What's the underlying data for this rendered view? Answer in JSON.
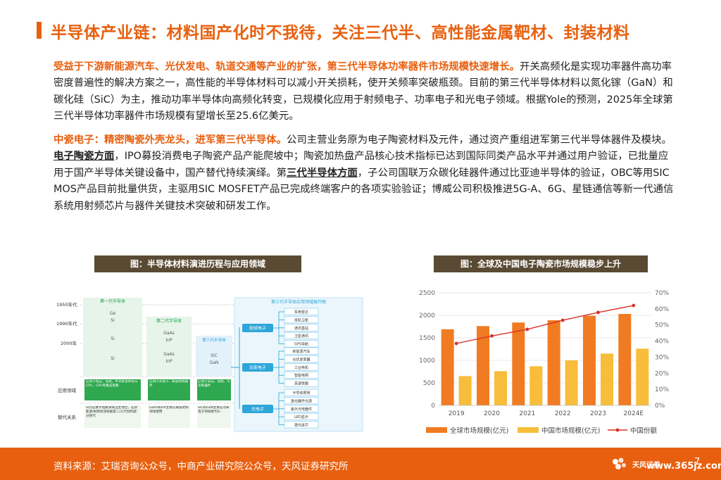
{
  "header": {
    "title": "半导体产业链：材料国产化时不我待，关注三代半、高性能金属靶材、封装材料"
  },
  "paragraph1": {
    "lead": "受益于下游新能源汽车、光伏发电、轨道交通等产业的扩张，第三代半导体功率器件市场规模快速增长。",
    "body": "开关高频化是实现功率器件高功率密度普遍性的解决方案之一，高性能的半导体材料可以减小开关损耗，使开关频率突破瓶颈。目前的第三代半导体材料以氮化镓（GaN）和碳化硅（SiC）为主，推动功率半导体向高频化转变，已规模化应用于射频电子、功率电子和光电子领域。根据Yole的预测，2025年全球第三代半导体功率器件市场规模有望增长至25.6亿美元。"
  },
  "paragraph2": {
    "lead": "中瓷电子：精密陶瓷外壳龙头，进军第三代半导体。",
    "body1": "公司主营业务原为电子陶瓷材料及元件，通过资产重组进军第三代半导体器件及模块。",
    "u1": "电子陶瓷方面",
    "body2": "，IPO募投消费电子陶瓷产品产能爬坡中；陶瓷加热盘产品核心技术指标已达到国际同类产品水平并通过用户验证，已批量应用于国产半导体关键设备中，国产替代持续演绎。第",
    "u2": "三代半导体方面",
    "body3": "，子公司国联万众碳化硅器件通过比亚迪半导体的验证，OBC等用SIC MOS产品目前批量供货，主驱用SIC MOSFET产品已完成终端客户的各项实验验证；博威公司积极推进5G-A、6G、星链通信等新一代通信系统用射频芯片与器件关键技术突破和研发工作。"
  },
  "figure_left": {
    "title": "图：半导体材料演进历程与应用领域",
    "eras": [
      "1950年代",
      "1990年代",
      "2000年"
    ],
    "row_labels": [
      "应用领域",
      "替代关系"
    ],
    "gen1": {
      "title": "第一代半导体",
      "materials": [
        "Ge",
        "Si",
        "Si",
        "Si"
      ],
      "app": "应用于电压、低频、中功率晶体管与CPU、GPU等集成电路",
      "rel": "Si仍在数字电路领域占主地位，在新能源/射频等领域被第二/三代材料部分替代"
    },
    "gen2": {
      "title": "第二代半导体",
      "materials": [
        "GaAs",
        "InP",
        "GaAs",
        "InP"
      ],
      "app": "应用于光电子、微波射频器件",
      "rel": "GaAs和InP主要在微波射频领域使用"
    },
    "gen3": {
      "title": "第三代半导体",
      "materials": [
        "SiC",
        "GaN"
      ],
      "app": "应用于高压、高频、大功率器件",
      "rel": "SiC和GaN主要在功率电子领域替代Si"
    },
    "apps_title": "第三代半导体应用领域展开图",
    "categories": [
      "射频电子",
      "功率电子",
      "光电子"
    ],
    "rf_items": [
      "军用雷达",
      "低轨卫星",
      "通讯基站",
      "卫星通讯",
      "GPS导航"
    ],
    "power_items": [
      "新能源汽车",
      "光伏逆变器",
      "工业电机",
      "智能电网",
      "高速铁路"
    ],
    "opto_items": [
      "半导体照明",
      "激光器件光源",
      "紫外光电器件",
      "LED显示",
      "激光显示"
    ]
  },
  "figure_right": {
    "title": "图：全球及中国电子陶瓷市场规模稳步上升"
  },
  "chart_data": {
    "type": "bar",
    "title": "",
    "categories": [
      "2019",
      "2020",
      "2021",
      "2022",
      "2023",
      "2024E"
    ],
    "series": [
      {
        "name": "全球市场规模(亿元)",
        "type": "bar",
        "axis": "left",
        "values": [
          1690,
          1760,
          1840,
          1890,
          1990,
          2030
        ]
      },
      {
        "name": "中国市场规模(亿元)",
        "type": "bar",
        "axis": "left",
        "values": [
          650,
          760,
          870,
          1000,
          1150,
          1260
        ]
      },
      {
        "name": "中国份额",
        "type": "line",
        "axis": "right",
        "values": [
          38.5,
          43.2,
          47.3,
          52.9,
          57.8,
          62.1
        ]
      }
    ],
    "ylim_left": [
      0,
      2500
    ],
    "yticks_left": [
      "0",
      "500",
      "1000",
      "1500",
      "2000",
      "2500"
    ],
    "ylim_right": [
      0,
      70
    ],
    "yticks_right": [
      "0%",
      "10%",
      "20%",
      "30%",
      "40%",
      "50%",
      "60%",
      "70%"
    ],
    "grid": true,
    "legend": "bottom",
    "colors": {
      "global": "#f07b22",
      "china": "#f7bd3b",
      "share": "#d8312a"
    }
  },
  "footer": {
    "source": "资料来源：艾瑞咨询公众号，中商产业研究院公众号，天风证券研究所",
    "logo_text": "天风证券",
    "watermark": "www.365jz.com",
    "page_number": "7"
  },
  "colors": {
    "accent": "#e8600f",
    "fig_title_bg": "#5a4a33",
    "diagram_teal": "#2ea6d8",
    "diagram_green": "#1fa24a"
  }
}
